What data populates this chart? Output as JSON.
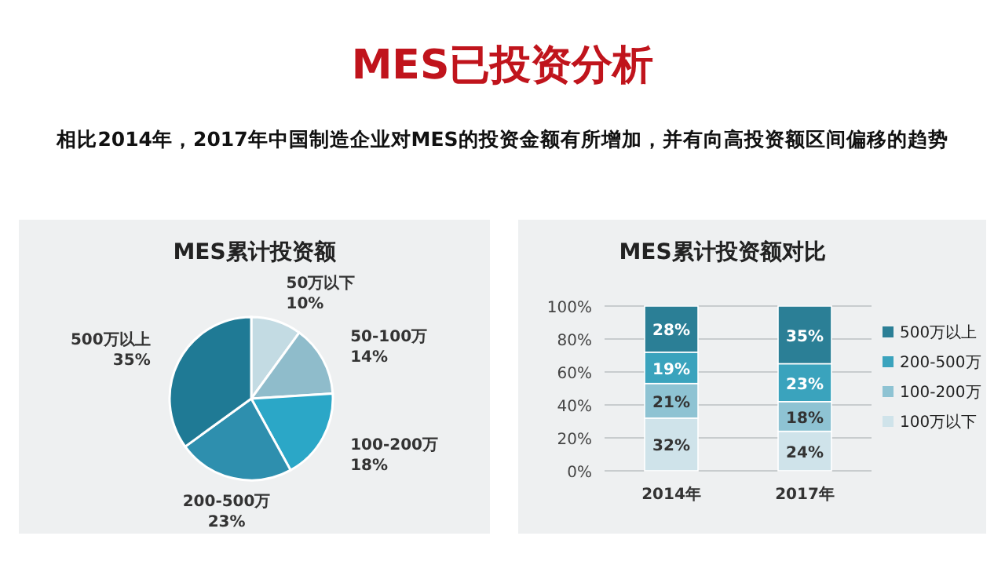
{
  "chart_data": [
    {
      "type": "other",
      "title": "MES已投资分析",
      "subtitle": "相比2014年，2017年中国制造企业对MES的投资金额有所增加，并有向高投资额区间偏移的趋势"
    },
    {
      "type": "pie",
      "title": "MES累计投资额",
      "categories": [
        "50万以下",
        "50-100万",
        "100-200万",
        "200-500万",
        "500万以上"
      ],
      "values": [
        10,
        14,
        18,
        23,
        35
      ],
      "value_labels": [
        "10%",
        "14%",
        "18%",
        "23%",
        "35%"
      ],
      "colors": [
        "#c3dbe3",
        "#8fbccb",
        "#2ba7c7",
        "#2e8fae",
        "#1f7a95"
      ]
    },
    {
      "type": "bar",
      "title": "MES累计投资额对比",
      "categories": [
        "2014年",
        "2017年"
      ],
      "stacked": true,
      "grid": "y",
      "legend": "right",
      "ylim": [
        0,
        100
      ],
      "yticks": [
        {
          "value": 0,
          "label": "0%"
        },
        {
          "value": 20,
          "label": "20%"
        },
        {
          "value": 40,
          "label": "40%"
        },
        {
          "value": 60,
          "label": "60%"
        },
        {
          "value": 80,
          "label": "80%"
        },
        {
          "value": 100,
          "label": "100%"
        }
      ],
      "series": [
        {
          "name": "100万以下",
          "color": "#cfe3ea",
          "values": [
            32,
            24
          ],
          "value_labels": [
            "32%",
            "24%"
          ]
        },
        {
          "name": "100-200万",
          "color": "#8ec3d3",
          "values": [
            21,
            18
          ],
          "value_labels": [
            "21%",
            "18%"
          ]
        },
        {
          "name": "200-500万",
          "color": "#3aa3bd",
          "values": [
            19,
            23
          ],
          "value_labels": [
            "19%",
            "23%"
          ]
        },
        {
          "name": "500万以上",
          "color": "#2b7f96",
          "values": [
            28,
            35
          ],
          "value_labels": [
            "28%",
            "35%"
          ]
        }
      ]
    }
  ]
}
